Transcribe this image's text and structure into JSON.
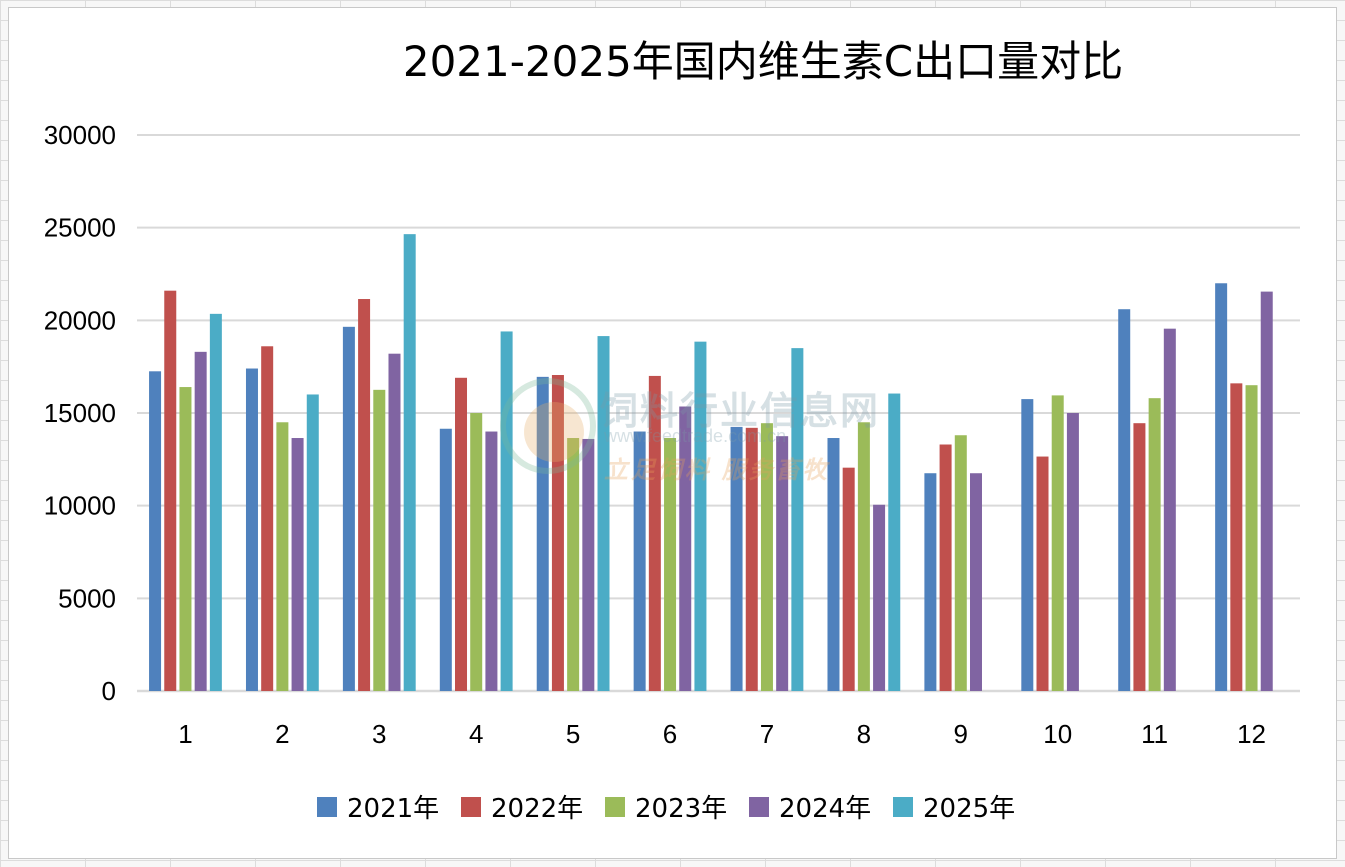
{
  "chart_data": {
    "type": "bar",
    "title": "2021-2025年国内维生素C出口量对比",
    "xlabel": "",
    "ylabel": "",
    "categories": [
      "1",
      "2",
      "3",
      "4",
      "5",
      "6",
      "7",
      "8",
      "9",
      "10",
      "11",
      "12"
    ],
    "ylim": [
      0,
      30000
    ],
    "yticks": [
      "0",
      "5000",
      "10000",
      "15000",
      "20000",
      "25000",
      "30000"
    ],
    "grid": true,
    "legend_position": "bottom",
    "series": [
      {
        "name": "2021年",
        "color": "#4f81bd",
        "values": [
          17250,
          17400,
          19650,
          14150,
          16950,
          14000,
          14250,
          13650,
          11750,
          15750,
          20600,
          22000
        ]
      },
      {
        "name": "2022年",
        "color": "#c0504d",
        "values": [
          21600,
          18600,
          21150,
          16900,
          17050,
          17000,
          14200,
          12050,
          13300,
          12650,
          14450,
          16600
        ]
      },
      {
        "name": "2023年",
        "color": "#9bbb59",
        "values": [
          16400,
          14500,
          16250,
          15000,
          13650,
          13650,
          14450,
          14500,
          13800,
          15950,
          15800,
          16500
        ]
      },
      {
        "name": "2024年",
        "color": "#8064a2",
        "values": [
          18300,
          13650,
          18200,
          14000,
          13600,
          15350,
          13750,
          10050,
          11750,
          15000,
          19550,
          21550
        ]
      },
      {
        "name": "2025年",
        "color": "#4bacc6",
        "values": [
          20350,
          16000,
          24650,
          19400,
          19150,
          18850,
          18500,
          16050,
          null,
          null,
          null,
          null
        ]
      }
    ]
  },
  "watermark": {
    "name": "饲料行业信息网",
    "url": "www.feedtrade.com.cn",
    "slogan": "立足饲料  服务畜牧"
  }
}
